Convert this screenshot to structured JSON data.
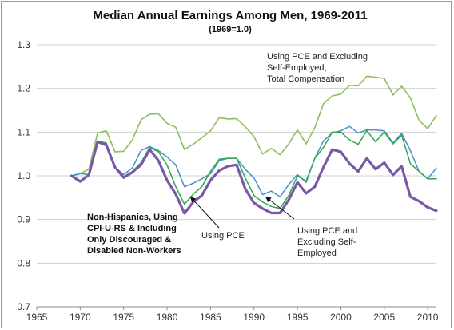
{
  "chart_data": {
    "type": "line",
    "title": "Median Annual Earnings Among Men, 1969-2011",
    "subtitle": "(1969=1.0)",
    "xlim": [
      1965,
      2011
    ],
    "ylim": [
      0.7,
      1.3
    ],
    "xticks": [
      "1965",
      "1970",
      "1975",
      "1980",
      "1985",
      "1990",
      "1995",
      "2000",
      "2005",
      "2010"
    ],
    "yticks": [
      "0.7",
      "0.8",
      "0.9",
      "1.0",
      "1.1",
      "1.2",
      "1.3"
    ],
    "grid": "horizontal",
    "x": [
      1969,
      1970,
      1971,
      1972,
      1973,
      1974,
      1975,
      1976,
      1977,
      1978,
      1979,
      1980,
      1981,
      1982,
      1983,
      1984,
      1985,
      1986,
      1987,
      1988,
      1989,
      1990,
      1991,
      1992,
      1993,
      1994,
      1995,
      1996,
      1997,
      1998,
      1999,
      2000,
      2001,
      2002,
      2003,
      2004,
      2005,
      2006,
      2007,
      2008,
      2009,
      2010,
      2011
    ],
    "series": [
      {
        "label": "Using PCE and Excluding Self-Employed, Total Compensation",
        "color": "#8fbf5a",
        "width": 1.6,
        "values": [
          1.0,
          1.005,
          1.015,
          1.098,
          1.103,
          1.055,
          1.056,
          1.082,
          1.128,
          1.141,
          1.142,
          1.12,
          1.111,
          1.06,
          1.072,
          1.087,
          1.103,
          1.133,
          1.13,
          1.131,
          1.112,
          1.09,
          1.05,
          1.063,
          1.048,
          1.073,
          1.105,
          1.073,
          1.11,
          1.165,
          1.183,
          1.187,
          1.207,
          1.206,
          1.228,
          1.226,
          1.223,
          1.185,
          1.205,
          1.178,
          1.127,
          1.108,
          1.138
        ]
      },
      {
        "label": "Using PCE and Excluding Self-Employed",
        "color": "#4a8fc4",
        "width": 1.5,
        "values": [
          1.0,
          1.005,
          1.003,
          1.075,
          1.075,
          1.02,
          1.003,
          1.018,
          1.058,
          1.067,
          1.058,
          1.043,
          1.025,
          0.975,
          0.983,
          0.993,
          1.005,
          1.035,
          1.04,
          1.04,
          1.015,
          0.995,
          0.957,
          0.965,
          0.952,
          0.98,
          1.003,
          0.985,
          1.04,
          1.08,
          1.098,
          1.103,
          1.113,
          1.098,
          1.105,
          1.105,
          1.103,
          1.075,
          1.097,
          1.058,
          1.01,
          0.993,
          1.018
        ]
      },
      {
        "label": "Using PCE",
        "color": "#2ea84b",
        "width": 1.5,
        "values": [
          1.0,
          0.988,
          1.0,
          1.08,
          1.075,
          1.018,
          0.998,
          1.01,
          1.03,
          1.065,
          1.055,
          1.025,
          0.975,
          0.935,
          0.958,
          0.975,
          1.01,
          1.038,
          1.04,
          1.04,
          0.995,
          0.955,
          0.94,
          0.93,
          0.925,
          0.955,
          1.0,
          0.988,
          1.04,
          1.065,
          1.1,
          1.1,
          1.082,
          1.072,
          1.103,
          1.078,
          1.1,
          1.073,
          1.093,
          1.028,
          1.01,
          0.993,
          0.993
        ]
      },
      {
        "label": "Non-Hispanics, Using CPI-U-RS & Including Only Discouraged & Disabled Non-Workers",
        "color": "#7a58a8",
        "width": 3.2,
        "values": [
          1.0,
          0.987,
          1.002,
          1.078,
          1.07,
          1.02,
          0.996,
          1.008,
          1.025,
          1.06,
          1.035,
          0.99,
          0.958,
          0.914,
          0.94,
          0.955,
          0.99,
          1.012,
          1.022,
          1.025,
          0.97,
          0.938,
          0.925,
          0.915,
          0.915,
          0.945,
          0.985,
          0.96,
          0.975,
          1.02,
          1.06,
          1.055,
          1.028,
          1.01,
          1.04,
          1.015,
          1.03,
          1.002,
          1.022,
          0.952,
          0.942,
          0.928,
          0.92
        ]
      }
    ],
    "annotations": {
      "top": [
        "Using PCE and Excluding",
        "Self-Employed,",
        "Total Compensation"
      ],
      "bold": [
        "Non-Hispanics, Using",
        "CPI-U-RS & Including",
        "Only Discouraged &",
        "Disabled Non-Workers"
      ],
      "pce": [
        "Using PCE"
      ],
      "excl": [
        "Using PCE and",
        "Excluding Self-",
        "Employed"
      ]
    }
  }
}
